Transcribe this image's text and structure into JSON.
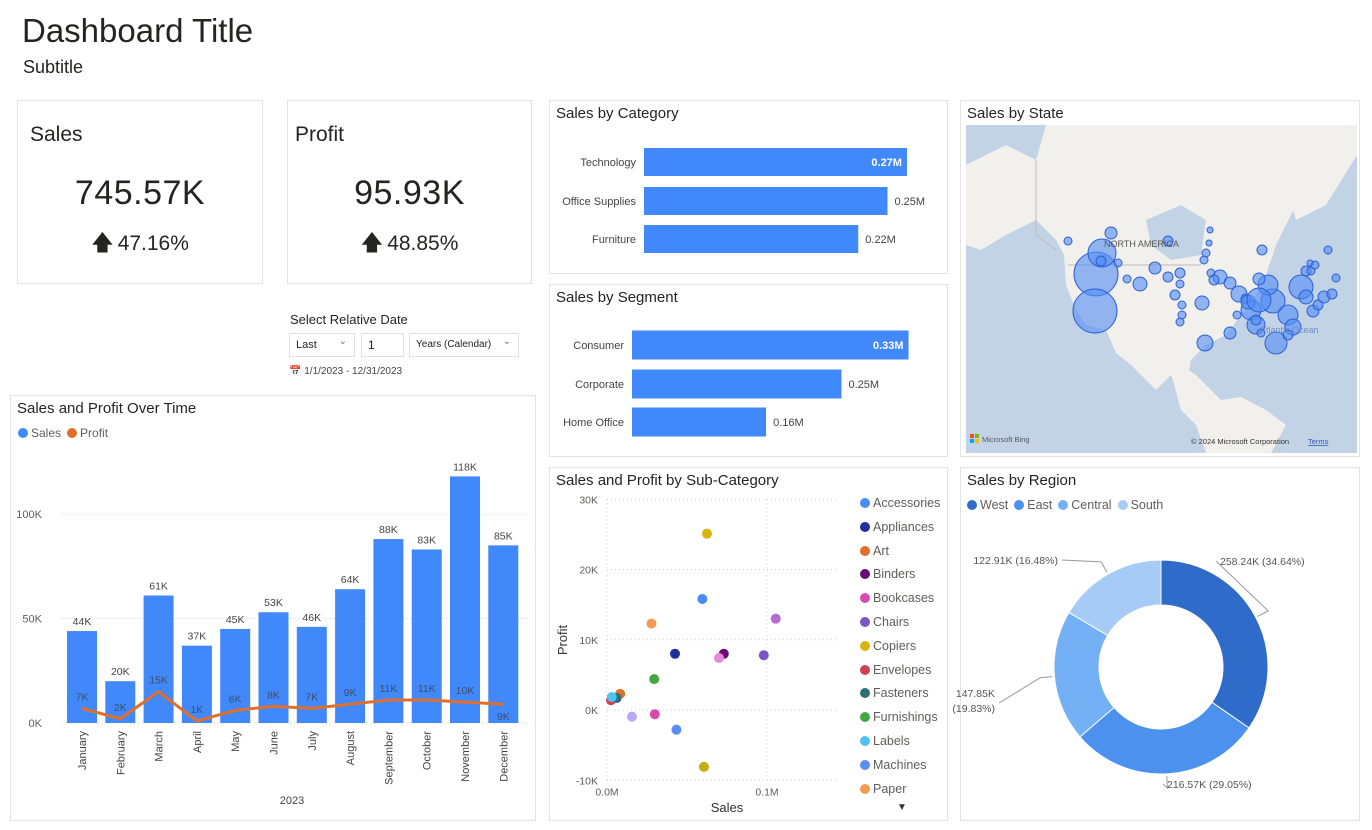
{
  "header": {
    "title": "Dashboard Title",
    "subtitle": "Subtitle"
  },
  "kpis": {
    "sales": {
      "label": "Sales",
      "value": "745.57K",
      "delta": "47.16%",
      "trend_icon": "arrow-up-icon"
    },
    "profit": {
      "label": "Profit",
      "value": "95.93K",
      "delta": "48.85%",
      "trend_icon": "arrow-up-icon"
    }
  },
  "slicer": {
    "title": "Select Relative Date",
    "mode": "Last",
    "count": "1",
    "unit": "Years (Calendar)",
    "range": "1/1/2023 - 12/31/2023"
  },
  "colors": {
    "sales": "#4189fb",
    "profit": "#e06f2b",
    "west": "#2f6bc8",
    "east": "#4c91ee",
    "central": "#74b0f5",
    "south": "#a6cbf7"
  },
  "time_chart": {
    "title": "Sales and Profit Over Time",
    "legend": [
      "Sales",
      "Profit"
    ],
    "xlabel": "2023",
    "yticks": [
      "0K",
      "50K",
      "100K"
    ],
    "chart_data": {
      "type": "bar",
      "categories": [
        "January",
        "February",
        "March",
        "April",
        "May",
        "June",
        "July",
        "August",
        "September",
        "October",
        "November",
        "December"
      ],
      "series": [
        {
          "name": "Sales",
          "values": [
            44,
            20,
            61,
            37,
            45,
            53,
            46,
            64,
            88,
            83,
            118,
            85
          ],
          "labels": [
            "44K",
            "20K",
            "61K",
            "37K",
            "45K",
            "53K",
            "46K",
            "64K",
            "88K",
            "83K",
            "118K",
            "85K"
          ]
        },
        {
          "name": "Profit",
          "type": "line",
          "values": [
            7,
            2,
            15,
            1,
            6,
            8,
            7,
            9,
            11,
            11,
            10,
            9
          ],
          "labels": [
            "7K",
            "2K",
            "15K",
            "1K",
            "6K",
            "8K",
            "7K",
            "9K",
            "11K",
            "11K",
            "10K",
            "9K"
          ]
        }
      ],
      "ylim": [
        0,
        130
      ],
      "unit": "K"
    }
  },
  "category_chart": {
    "title": "Sales by Category",
    "chart_data": {
      "type": "bar",
      "categories": [
        "Technology",
        "Office Supplies",
        "Furniture"
      ],
      "values": [
        0.27,
        0.25,
        0.22
      ],
      "labels": [
        "0.27M",
        "0.25M",
        "0.22M"
      ]
    }
  },
  "segment_chart": {
    "title": "Sales by Segment",
    "chart_data": {
      "type": "bar",
      "categories": [
        "Consumer",
        "Corporate",
        "Home Office"
      ],
      "values": [
        0.33,
        0.25,
        0.16
      ],
      "labels": [
        "0.33M",
        "0.25M",
        "0.16M"
      ]
    }
  },
  "scatter_chart": {
    "title": "Sales and Profit by Sub-Category",
    "xlabel": "Sales",
    "ylabel": "Profit",
    "xticks": [
      "0.0M",
      "0.1M"
    ],
    "yticks": [
      "-10K",
      "0K",
      "10K",
      "20K",
      "30K"
    ],
    "legend": [
      {
        "name": "Accessories",
        "color": "#4a8cf4"
      },
      {
        "name": "Appliances",
        "color": "#1f2f9e"
      },
      {
        "name": "Art",
        "color": "#e06f2b"
      },
      {
        "name": "Binders",
        "color": "#6b0a78"
      },
      {
        "name": "Bookcases",
        "color": "#d74bb0"
      },
      {
        "name": "Chairs",
        "color": "#7a55c8"
      },
      {
        "name": "Copiers",
        "color": "#d9b40a"
      },
      {
        "name": "Envelopes",
        "color": "#d0424f"
      },
      {
        "name": "Fasteners",
        "color": "#2c6f75"
      },
      {
        "name": "Furnishings",
        "color": "#43a843"
      },
      {
        "name": "Labels",
        "color": "#4fc3ef"
      },
      {
        "name": "Machines",
        "color": "#5a8ef5"
      },
      {
        "name": "Paper",
        "color": "#f29b52"
      }
    ],
    "chart_data": {
      "type": "scatter",
      "xlim": [
        0,
        0.145
      ],
      "ylim": [
        -10,
        30
      ],
      "points": [
        {
          "name": "Copiers",
          "x": 0.0625,
          "y": 25.1,
          "color": "#d9b40a"
        },
        {
          "name": "Accessories",
          "x": 0.0596,
          "y": 15.8,
          "color": "#4a8cf4"
        },
        {
          "x": 0.1055,
          "y": 13.0,
          "color": "#b46bd6"
        },
        {
          "name": "Paper",
          "x": 0.0278,
          "y": 12.3,
          "color": "#f29b52"
        },
        {
          "name": "Appliances",
          "x": 0.0425,
          "y": 8.0,
          "color": "#1f2f9e"
        },
        {
          "name": "Binders",
          "x": 0.073,
          "y": 8.0,
          "color": "#6b0a78"
        },
        {
          "x": 0.07,
          "y": 7.4,
          "color": "#e88ad8"
        },
        {
          "name": "Chairs",
          "x": 0.098,
          "y": 7.8,
          "color": "#7a55c8"
        },
        {
          "name": "Furnishings",
          "x": 0.0295,
          "y": 4.4,
          "color": "#43a843"
        },
        {
          "name": "Art",
          "x": 0.0082,
          "y": 2.3,
          "color": "#e06f2b"
        },
        {
          "name": "Envelopes",
          "x": 0.0025,
          "y": 1.4,
          "color": "#d0424f"
        },
        {
          "name": "Fasteners",
          "x": 0.006,
          "y": 1.7,
          "color": "#2c6f75"
        },
        {
          "name": "Labels",
          "x": 0.003,
          "y": 1.85,
          "color": "#4fc3ef"
        },
        {
          "x": 0.0156,
          "y": -0.95,
          "color": "#bba7f5"
        },
        {
          "name": "Bookcases",
          "x": 0.0299,
          "y": -0.6,
          "color": "#d74bb0"
        },
        {
          "name": "Machines",
          "x": 0.0434,
          "y": -2.8,
          "color": "#5a8ef5"
        },
        {
          "x": 0.0606,
          "y": -8.1,
          "color": "#c9aa10"
        }
      ]
    }
  },
  "map": {
    "title": "Sales by State",
    "ocean_label": "Atlantic Ocean",
    "continent_label": "NORTH AMERICA",
    "provider": "Microsoft Bing",
    "copyright": "© 2024 Microsoft Corporation",
    "terms": "Terms"
  },
  "region_chart": {
    "title": "Sales by Region",
    "legend": [
      "West",
      "East",
      "Central",
      "South"
    ],
    "chart_data": {
      "type": "pie",
      "donut": true,
      "categories": [
        "West",
        "East",
        "Central",
        "South"
      ],
      "values": [
        258.24,
        216.57,
        147.85,
        122.91
      ],
      "percents": [
        34.64,
        29.05,
        19.83,
        16.48
      ],
      "labels": [
        "258.24K (34.64%)",
        "216.57K (29.05%)",
        "147.85K (19.83%)",
        "122.91K (16.48%)"
      ]
    }
  }
}
